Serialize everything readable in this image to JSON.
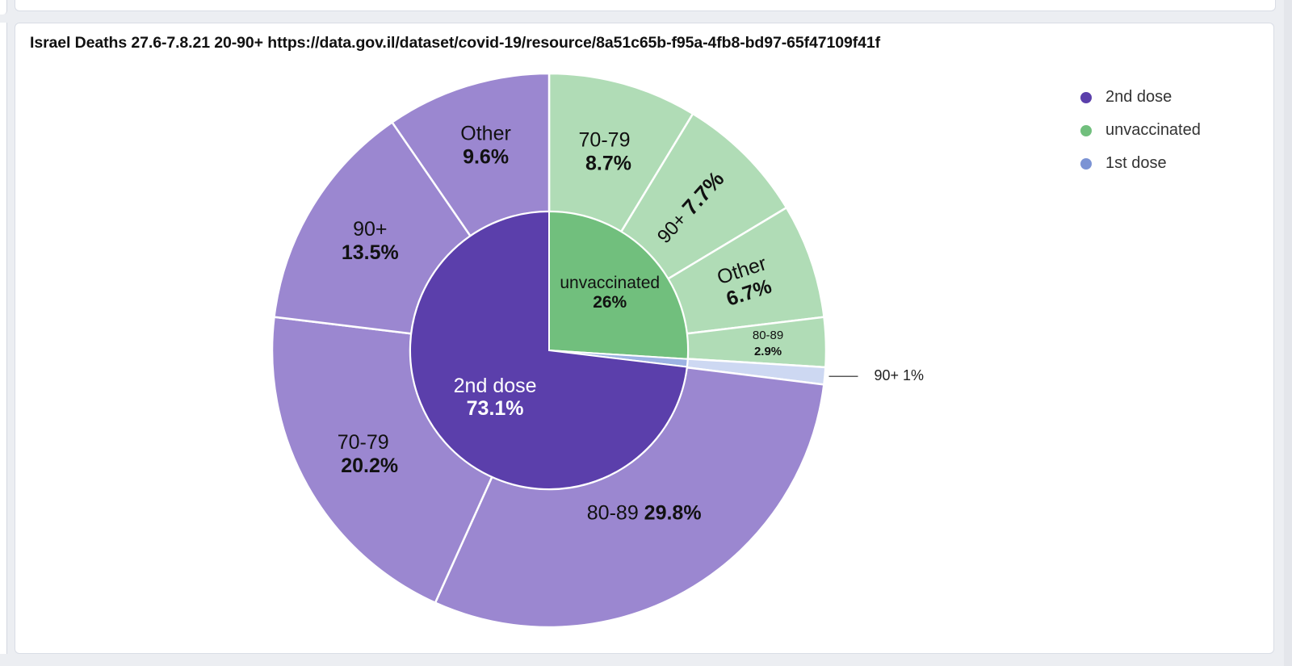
{
  "panel": {
    "title": "Israel Deaths 27.6-7.8.21 20-90+ https://data.gov.il/dataset/covid-19/resource/8a51c65b-f95a-4fb8-bd97-65f47109f41f"
  },
  "chart_data": {
    "type": "pie",
    "subtype": "sunburst",
    "title": "Israel Deaths 27.6-7.8.21 20-90+ https://data.gov.il/dataset/covid-19/resource/8a51c65b-f95a-4fb8-bd97-65f47109f41f",
    "legend_position": "top-right",
    "legend": [
      {
        "name": "2nd dose",
        "color": "#5b3fab"
      },
      {
        "name": "unvaccinated",
        "color": "#71bf7d"
      },
      {
        "name": "1st dose",
        "color": "#7b93d4"
      }
    ],
    "inner": [
      {
        "label": "unvaccinated",
        "pct": "26%",
        "value": 26.0,
        "color": "#71bf7d",
        "text_color": "#111111"
      },
      {
        "label": "1st dose",
        "pct": "",
        "value": 0.9,
        "color": "#9db3e3",
        "text_color": "#111111"
      },
      {
        "label": "2nd dose",
        "pct": "73.1%",
        "value": 73.1,
        "color": "#5b3fab",
        "text_color": "#ffffff"
      }
    ],
    "outer": [
      {
        "label": "70-79",
        "pct": "8.7%",
        "value": 8.7,
        "color": "#b0dcb6"
      },
      {
        "label": "90+",
        "pct": "7.7%",
        "value": 7.7,
        "color": "#b0dcb6"
      },
      {
        "label": "Other",
        "pct": "6.7%",
        "value": 6.7,
        "color": "#b0dcb6"
      },
      {
        "label": "80-89",
        "pct": "2.9%",
        "value": 2.9,
        "color": "#b0dcb6"
      },
      {
        "label": "90+",
        "pct": "1%",
        "value": 1.0,
        "color": "#cdd8f2"
      },
      {
        "label": "80-89",
        "pct": "29.8%",
        "value": 29.8,
        "color": "#9b87d0"
      },
      {
        "label": "70-79",
        "pct": "20.2%",
        "value": 20.2,
        "color": "#9b87d0"
      },
      {
        "label": "90+",
        "pct": "13.5%",
        "value": 13.5,
        "color": "#9b87d0"
      },
      {
        "label": "Other",
        "pct": "9.6%",
        "value": 9.6,
        "color": "#9b87d0"
      }
    ]
  }
}
